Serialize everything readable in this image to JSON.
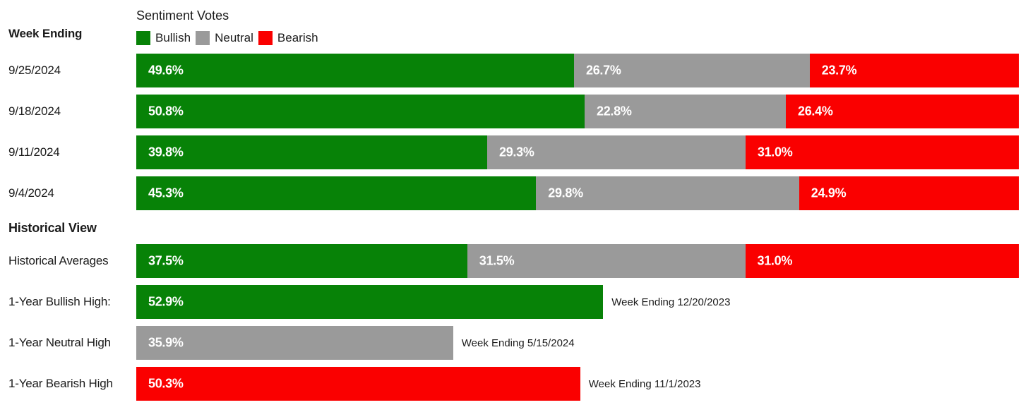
{
  "colors": {
    "bullish": "#078207",
    "neutral": "#9A9A9A",
    "bearish": "#FA0000",
    "text": "#1B1B1B"
  },
  "header": {
    "left_title": "Week Ending",
    "chart_title": "Sentiment Votes",
    "legend": [
      {
        "label": "Bullish"
      },
      {
        "label": "Neutral"
      },
      {
        "label": "Bearish"
      }
    ]
  },
  "weekly": {
    "rows": [
      {
        "week": "9/25/2024",
        "segments": {
          "bullish": {
            "pct": 49.6,
            "label": "49.6%"
          },
          "neutral": {
            "pct": 26.7,
            "label": "26.7%"
          },
          "bearish": {
            "pct": 23.7,
            "label": "23.7%"
          }
        }
      },
      {
        "week": "9/18/2024",
        "segments": {
          "bullish": {
            "pct": 50.8,
            "label": "50.8%"
          },
          "neutral": {
            "pct": 22.8,
            "label": "22.8%"
          },
          "bearish": {
            "pct": 26.4,
            "label": "26.4%"
          }
        }
      },
      {
        "week": "9/11/2024",
        "segments": {
          "bullish": {
            "pct": 39.8,
            "label": "39.8%"
          },
          "neutral": {
            "pct": 29.3,
            "label": "29.3%"
          },
          "bearish": {
            "pct": 31.0,
            "label": "31.0%"
          }
        }
      },
      {
        "week": "9/4/2024",
        "segments": {
          "bullish": {
            "pct": 45.3,
            "label": "45.3%"
          },
          "neutral": {
            "pct": 29.8,
            "label": "29.8%"
          },
          "bearish": {
            "pct": 24.9,
            "label": "24.9%"
          }
        }
      }
    ]
  },
  "historical": {
    "heading": "Historical View",
    "averages": {
      "label": "Historical Averages",
      "segments": {
        "bullish": {
          "pct": 37.5,
          "label": "37.5%"
        },
        "neutral": {
          "pct": 31.5,
          "label": "31.5%"
        },
        "bearish": {
          "pct": 31.0,
          "label": "31.0%"
        }
      }
    },
    "highs": [
      {
        "label": "1-Year Bullish High:",
        "pct": 52.9,
        "value_label": "52.9%",
        "annotation": "Week Ending 12/20/2023",
        "series": "bullish"
      },
      {
        "label": "1-Year Neutral High",
        "pct": 35.9,
        "value_label": "35.9%",
        "annotation": "Week Ending 5/15/2024",
        "series": "neutral"
      },
      {
        "label": "1-Year Bearish High",
        "pct": 50.3,
        "value_label": "50.3%",
        "annotation": "Week Ending 11/1/2023",
        "series": "bearish"
      }
    ]
  },
  "chart_data": {
    "type": "bar",
    "orientation": "horizontal",
    "stacked": true,
    "title": "Sentiment Votes",
    "row_axis_title": "Week Ending",
    "categories": [
      "9/25/2024",
      "9/18/2024",
      "9/11/2024",
      "9/4/2024",
      "Historical Averages"
    ],
    "series": [
      {
        "name": "Bullish",
        "color": "#078207",
        "values": [
          49.6,
          50.8,
          39.8,
          45.3,
          37.5
        ]
      },
      {
        "name": "Neutral",
        "color": "#9A9A9A",
        "values": [
          26.7,
          22.8,
          29.3,
          29.8,
          31.5
        ]
      },
      {
        "name": "Bearish",
        "color": "#FA0000",
        "values": [
          23.7,
          26.4,
          31.0,
          24.9,
          31.0
        ]
      }
    ],
    "extra_bars": [
      {
        "label": "1-Year Bullish High:",
        "series": "Bullish",
        "value": 52.9,
        "note": "Week Ending 12/20/2023"
      },
      {
        "label": "1-Year Neutral High",
        "series": "Neutral",
        "value": 35.9,
        "note": "Week Ending 5/15/2024"
      },
      {
        "label": "1-Year Bearish High",
        "series": "Bearish",
        "value": 50.3,
        "note": "Week Ending 11/1/2023"
      }
    ],
    "section_heading": "Historical View",
    "xlim": [
      0,
      100
    ],
    "value_label_format": "0.0%",
    "legend_position": "top-left",
    "grid": false
  }
}
